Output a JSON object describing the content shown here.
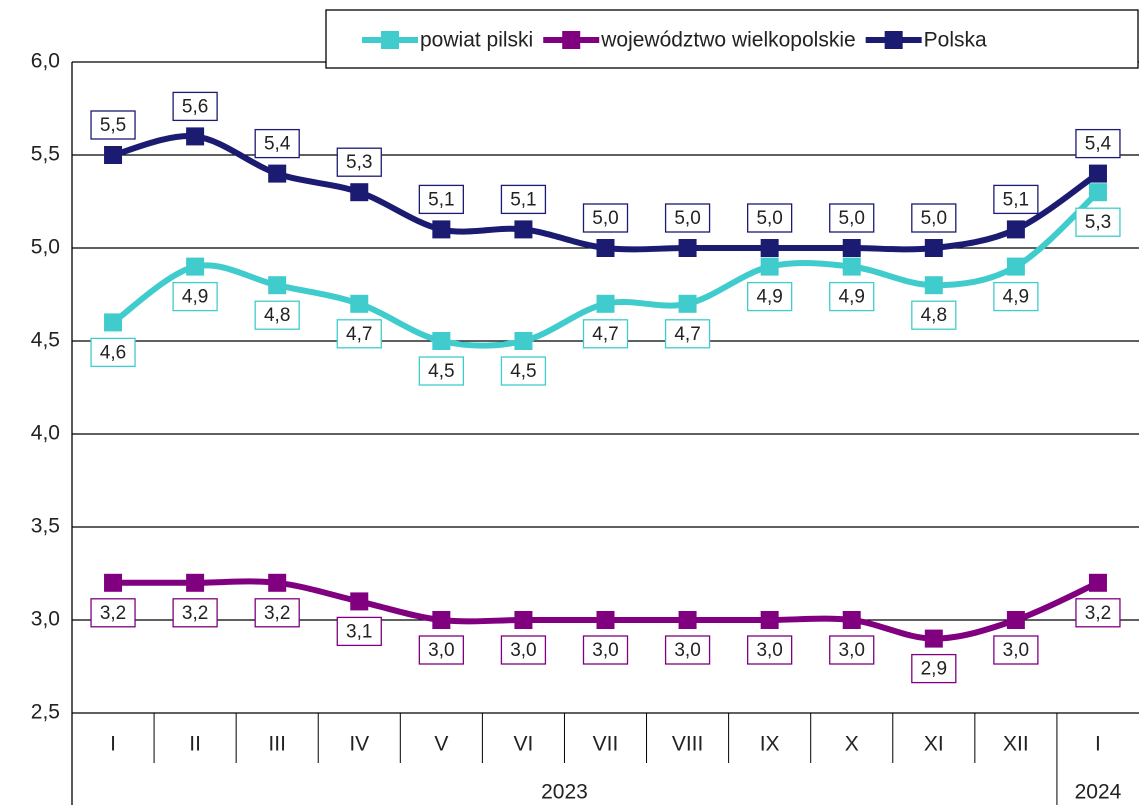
{
  "chart_data": {
    "type": "line",
    "categories": [
      "I",
      "II",
      "III",
      "IV",
      "V",
      "VI",
      "VII",
      "VIII",
      "IX",
      "X",
      "XI",
      "XII",
      "I"
    ],
    "year_labels": [
      "2023",
      "2024"
    ],
    "series": [
      {
        "name": "powiat pilski",
        "color": "#40cccc",
        "values": [
          4.6,
          4.9,
          4.8,
          4.7,
          4.5,
          4.5,
          4.7,
          4.7,
          4.9,
          4.9,
          4.8,
          4.9,
          5.3
        ],
        "value_labels": [
          "4,6",
          "4,9",
          "4,8",
          "4,7",
          "4,5",
          "4,5",
          "4,7",
          "4,7",
          "4,9",
          "4,9",
          "4,8",
          "4,9",
          "5,3"
        ]
      },
      {
        "name": "województwo wielkopolskie",
        "color": "#800080",
        "values": [
          3.2,
          3.2,
          3.2,
          3.1,
          3.0,
          3.0,
          3.0,
          3.0,
          3.0,
          3.0,
          2.9,
          3.0,
          3.2
        ],
        "value_labels": [
          "3,2",
          "3,2",
          "3,2",
          "3,1",
          "3,0",
          "3,0",
          "3,0",
          "3,0",
          "3,0",
          "3,0",
          "2,9",
          "3,0",
          "3,2"
        ]
      },
      {
        "name": "Polska",
        "color": "#1b1b72",
        "values": [
          5.5,
          5.6,
          5.4,
          5.3,
          5.1,
          5.1,
          5.0,
          5.0,
          5.0,
          5.0,
          5.0,
          5.1,
          5.4
        ],
        "value_labels": [
          "5,5",
          "5,6",
          "5,4",
          "5,3",
          "5,1",
          "5,1",
          "5,0",
          "5,0",
          "5,0",
          "5,0",
          "5,0",
          "5,1",
          "5,4"
        ]
      }
    ],
    "ylim": [
      2.5,
      6.0
    ],
    "yticks": [
      {
        "value": 2.5,
        "label": "2,5"
      },
      {
        "value": 3.0,
        "label": "3,0"
      },
      {
        "value": 3.5,
        "label": "3,5"
      },
      {
        "value": 4.0,
        "label": "4,0"
      },
      {
        "value": 4.5,
        "label": "4,5"
      },
      {
        "value": 5.0,
        "label": "5,0"
      },
      {
        "value": 5.5,
        "label": "5,5"
      },
      {
        "value": 6.0,
        "label": "6,0"
      }
    ],
    "grid": true,
    "legend": "top-right"
  }
}
